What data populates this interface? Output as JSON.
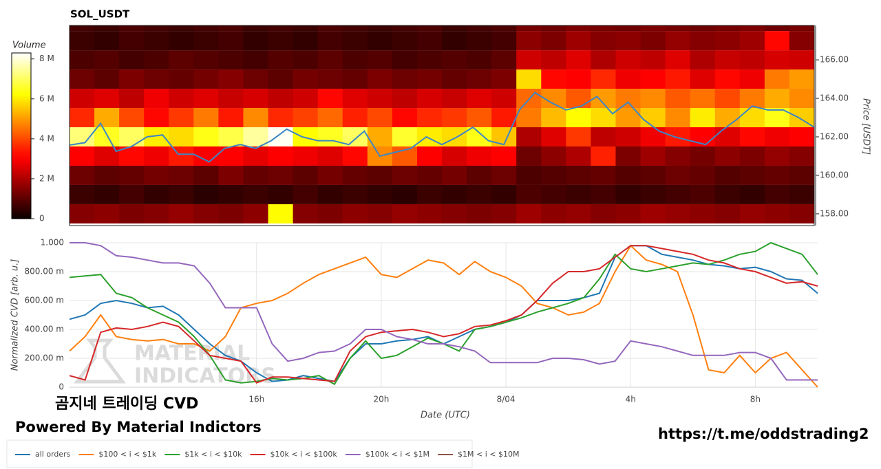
{
  "chart_data": [
    {
      "type": "heatmap",
      "title": "SOL_USDT",
      "ylabel": "Price [USDT]",
      "colorbar_title": "Volume",
      "xlim": [
        10,
        34
      ],
      "ylim": [
        157.39,
        167.79
      ],
      "yticks": [
        {
          "value": 158,
          "label": "158.00"
        },
        {
          "value": 160,
          "label": "160.00"
        },
        {
          "value": 162,
          "label": "162.00"
        },
        {
          "value": 164,
          "label": "164.00"
        },
        {
          "value": 166,
          "label": "166.00"
        }
      ],
      "zlim": [
        0,
        8.3
      ],
      "zticks": [
        0,
        {
          "value": 2,
          "label": "2 M"
        },
        {
          "value": 4,
          "label": "4 M"
        },
        {
          "value": 6,
          "label": "6 M"
        },
        {
          "value": 8,
          "label": "8 M"
        }
      ],
      "colormap": "hot",
      "xbins": [
        10,
        10.8,
        11.6,
        12.4,
        13.2,
        14,
        14.8,
        15.6,
        16.4,
        17.2,
        18,
        18.8,
        19.6,
        20.4,
        21.2,
        22,
        22.8,
        23.6,
        24.4,
        25.2,
        26,
        26.8,
        27.6,
        28.4,
        29.2,
        30,
        30.8,
        31.6,
        32.4,
        33.2,
        34
      ],
      "ybins": [
        157.5,
        158.5,
        159.5,
        160.5,
        161.5,
        162.5,
        163.5,
        164.5,
        165.5,
        166.5,
        167.5,
        168.5
      ],
      "z": [
        [
          1.5,
          1.6,
          1.4,
          1.5,
          1.7,
          1.5,
          1.4,
          1.6,
          6.2,
          1.5,
          1.4,
          1.6,
          1.5,
          1.7,
          1.6,
          1.5,
          1.4,
          1.5,
          1.8,
          1.6,
          1.7,
          1.5,
          1.6,
          1.8,
          1.7,
          1.6,
          1.5,
          1.7,
          1.6,
          1.5
        ],
        [
          0.6,
          0.5,
          0.7,
          0.5,
          0.6,
          0.4,
          0.5,
          0.6,
          0.5,
          0.7,
          0.5,
          0.6,
          0.5,
          0.4,
          0.6,
          0.5,
          0.6,
          0.5,
          0.8,
          0.7,
          0.6,
          0.7,
          0.5,
          0.6,
          0.7,
          0.8,
          0.6,
          0.5,
          0.7,
          0.6
        ],
        [
          1.2,
          1.0,
          1.1,
          1.3,
          1.2,
          1.0,
          1.4,
          1.1,
          1.2,
          1.0,
          1.3,
          1.1,
          1.0,
          1.2,
          1.1,
          1.3,
          1.0,
          1.2,
          0.8,
          0.9,
          1.0,
          1.1,
          0.9,
          1.0,
          1.2,
          1.1,
          0.9,
          1.0,
          1.1,
          1.0
        ],
        [
          3.0,
          2.6,
          3.2,
          2.8,
          3.4,
          2.9,
          3.1,
          2.7,
          3.0,
          2.8,
          2.6,
          3.2,
          4.8,
          4.2,
          3.0,
          2.5,
          2.8,
          3.1,
          1.2,
          1.6,
          2.0,
          3.5,
          1.4,
          1.8,
          1.5,
          1.3,
          1.6,
          1.4,
          1.7,
          1.5
        ],
        [
          7.2,
          6.5,
          7.0,
          6.0,
          5.8,
          6.4,
          6.8,
          7.5,
          8.2,
          6.2,
          6.5,
          7.0,
          5.2,
          6.6,
          6.0,
          5.8,
          6.4,
          5.5,
          2.0,
          2.6,
          3.8,
          2.2,
          2.4,
          2.8,
          3.4,
          3.0,
          2.6,
          3.2,
          2.8,
          3.0
        ],
        [
          3.6,
          5.2,
          4.0,
          3.2,
          3.8,
          4.6,
          3.4,
          4.8,
          3.6,
          3.9,
          4.4,
          3.5,
          4.0,
          3.2,
          3.6,
          3.8,
          4.2,
          3.4,
          4.6,
          5.4,
          6.2,
          5.8,
          5.0,
          5.6,
          4.8,
          6.0,
          5.2,
          5.8,
          6.4,
          5.6
        ],
        [
          2.4,
          2.6,
          2.2,
          2.8,
          2.4,
          2.6,
          2.3,
          2.5,
          2.2,
          2.4,
          3.2,
          2.6,
          2.4,
          2.2,
          2.5,
          2.3,
          2.6,
          2.4,
          4.4,
          4.8,
          4.2,
          5.0,
          4.6,
          4.8,
          4.2,
          4.5,
          4.0,
          4.6,
          5.2,
          4.8
        ],
        [
          1.2,
          1.0,
          1.4,
          1.2,
          1.1,
          1.3,
          1.5,
          1.2,
          1.0,
          1.3,
          1.2,
          1.1,
          1.4,
          1.2,
          1.3,
          1.1,
          1.2,
          1.4,
          5.8,
          3.2,
          3.0,
          3.6,
          2.8,
          3.0,
          3.4,
          2.6,
          3.2,
          2.8,
          4.6,
          5.0
        ],
        [
          0.8,
          0.9,
          0.7,
          0.8,
          1.0,
          0.9,
          0.8,
          0.7,
          0.9,
          0.8,
          1.0,
          0.8,
          0.9,
          0.7,
          0.8,
          0.9,
          0.8,
          1.0,
          2.4,
          2.2,
          2.6,
          2.0,
          2.4,
          2.2,
          2.6,
          2.0,
          2.3,
          2.2,
          2.5,
          2.4
        ],
        [
          0.6,
          0.5,
          0.7,
          0.6,
          0.5,
          0.6,
          0.7,
          0.5,
          0.6,
          0.5,
          0.7,
          0.6,
          0.5,
          0.6,
          0.7,
          0.5,
          0.6,
          0.7,
          1.6,
          1.4,
          1.8,
          1.5,
          1.6,
          1.4,
          1.7,
          1.5,
          1.6,
          1.8,
          3.2,
          1.5
        ],
        [
          0.7,
          0.6,
          0.8,
          0.7,
          0.6,
          0.7,
          0.8,
          0.6,
          0.7,
          0.6,
          0.8,
          0.7,
          0.6,
          0.7,
          0.8,
          0.6,
          0.7,
          0.8,
          1.3,
          1.2,
          1.4,
          1.3,
          1.2,
          1.4,
          1.3,
          1.2,
          1.3,
          1.4,
          1.2,
          1.3
        ]
      ],
      "line_color": "#3b86c6",
      "x": [
        10,
        10.5,
        11,
        11.5,
        12,
        12.5,
        13,
        13.5,
        14,
        14.5,
        15,
        15.5,
        16,
        16.5,
        17,
        17.5,
        18,
        18.5,
        19,
        19.5,
        20,
        20.5,
        21,
        21.5,
        22,
        22.5,
        23,
        23.5,
        24,
        24.5,
        25,
        25.5,
        26,
        26.5,
        27,
        27.5,
        28,
        28.5,
        29,
        29.5,
        30,
        30.5,
        31,
        31.5,
        32,
        32.5,
        33,
        33.5,
        34
      ],
      "values": [
        161.57,
        161.7,
        162.7,
        161.25,
        161.5,
        162.0,
        162.1,
        161.1,
        161.1,
        160.7,
        161.4,
        161.6,
        161.4,
        161.8,
        162.4,
        162.0,
        161.8,
        161.8,
        161.6,
        162.3,
        161.0,
        161.2,
        161.4,
        162.0,
        161.6,
        162.0,
        162.5,
        161.8,
        161.6,
        163.4,
        164.3,
        163.8,
        163.4,
        163.6,
        164.1,
        163.2,
        163.8,
        162.9,
        162.3,
        162.0,
        161.8,
        161.6,
        162.3,
        162.9,
        163.6,
        163.4,
        163.4,
        163.0,
        162.5
      ]
    },
    {
      "type": "line",
      "xlabel": "Date (UTC)",
      "ylabel": "Normalized CVD [arb. u.]",
      "xlim": [
        10,
        34
      ],
      "ylim": [
        0,
        1
      ],
      "xticks": [
        {
          "value": 16,
          "label": "16h"
        },
        {
          "value": 20,
          "label": "20h"
        },
        {
          "value": 24,
          "label": "8/04"
        },
        {
          "value": 28,
          "label": "4h"
        },
        {
          "value": 32,
          "label": "8h"
        }
      ],
      "yticks": [
        0,
        {
          "value": 0.2,
          "label": "200.00 m"
        },
        {
          "value": 0.4,
          "label": "400.00 m"
        },
        {
          "value": 0.6,
          "label": "600.00 m"
        },
        {
          "value": 0.8,
          "label": "800.00 m"
        },
        {
          "value": 1,
          "label": "1.000"
        }
      ],
      "grid": true,
      "legend": "bottom",
      "x": [
        10,
        10.5,
        11,
        11.5,
        12,
        12.5,
        13,
        13.5,
        14,
        14.5,
        15,
        15.5,
        16,
        16.5,
        17,
        17.5,
        18,
        18.5,
        19,
        19.5,
        20,
        20.5,
        21,
        21.5,
        22,
        22.5,
        23,
        23.5,
        24,
        24.5,
        25,
        25.5,
        26,
        26.5,
        27,
        27.5,
        28,
        28.5,
        29,
        29.5,
        30,
        30.5,
        31,
        31.5,
        32,
        32.5,
        33,
        33.5,
        34
      ],
      "series": [
        {
          "name": "all orders",
          "color": "#1f77b4",
          "values": [
            0.47,
            0.5,
            0.58,
            0.6,
            0.58,
            0.55,
            0.56,
            0.5,
            0.4,
            0.3,
            0.22,
            0.18,
            0.1,
            0.04,
            0.05,
            0.08,
            0.06,
            0.04,
            0.2,
            0.3,
            0.3,
            0.32,
            0.33,
            0.35,
            0.3,
            0.35,
            0.4,
            0.42,
            0.45,
            0.5,
            0.6,
            0.6,
            0.6,
            0.62,
            0.65,
            0.9,
            0.98,
            0.98,
            0.92,
            0.9,
            0.88,
            0.85,
            0.84,
            0.82,
            0.83,
            0.8,
            0.75,
            0.74,
            0.65
          ]
        },
        {
          "name": "$100 < i < $1k",
          "color": "#ff7f0e",
          "values": [
            0.25,
            0.35,
            0.5,
            0.35,
            0.33,
            0.32,
            0.33,
            0.3,
            0.3,
            0.25,
            0.35,
            0.55,
            0.58,
            0.6,
            0.65,
            0.72,
            0.78,
            0.82,
            0.86,
            0.9,
            0.78,
            0.76,
            0.82,
            0.88,
            0.86,
            0.78,
            0.87,
            0.8,
            0.76,
            0.7,
            0.58,
            0.55,
            0.5,
            0.52,
            0.58,
            0.8,
            0.98,
            0.88,
            0.85,
            0.8,
            0.5,
            0.12,
            0.1,
            0.22,
            0.1,
            0.2,
            0.24,
            0.12,
            0.0
          ]
        },
        {
          "name": "$1k < i < $10k",
          "color": "#2ca02c",
          "values": [
            0.76,
            0.77,
            0.78,
            0.65,
            0.62,
            0.55,
            0.5,
            0.45,
            0.35,
            0.22,
            0.05,
            0.03,
            0.04,
            0.06,
            0.05,
            0.06,
            0.08,
            0.02,
            0.2,
            0.32,
            0.2,
            0.22,
            0.28,
            0.34,
            0.3,
            0.25,
            0.4,
            0.42,
            0.45,
            0.48,
            0.52,
            0.55,
            0.58,
            0.62,
            0.75,
            0.92,
            0.82,
            0.8,
            0.82,
            0.84,
            0.86,
            0.85,
            0.88,
            0.92,
            0.94,
            1.0,
            0.96,
            0.92,
            0.78
          ]
        },
        {
          "name": "$10k < i < $100k",
          "color": "#d62728",
          "values": [
            0.08,
            0.05,
            0.38,
            0.41,
            0.4,
            0.42,
            0.45,
            0.42,
            0.32,
            0.22,
            0.2,
            0.18,
            0.03,
            0.07,
            0.07,
            0.06,
            0.05,
            0.04,
            0.25,
            0.35,
            0.38,
            0.39,
            0.4,
            0.38,
            0.35,
            0.37,
            0.42,
            0.43,
            0.46,
            0.5,
            0.6,
            0.72,
            0.8,
            0.8,
            0.82,
            0.9,
            0.98,
            0.98,
            0.96,
            0.94,
            0.92,
            0.88,
            0.86,
            0.82,
            0.8,
            0.76,
            0.72,
            0.73,
            0.7
          ]
        },
        {
          "name": "$100k < i < $1M",
          "color": "#9467bd",
          "values": [
            1.0,
            1.0,
            0.98,
            0.91,
            0.9,
            0.88,
            0.86,
            0.86,
            0.84,
            0.72,
            0.55,
            0.55,
            0.55,
            0.3,
            0.18,
            0.2,
            0.24,
            0.25,
            0.3,
            0.4,
            0.4,
            0.35,
            0.33,
            0.3,
            0.3,
            0.28,
            0.25,
            0.17,
            0.17,
            0.17,
            0.17,
            0.2,
            0.2,
            0.19,
            0.16,
            0.18,
            0.32,
            0.3,
            0.28,
            0.25,
            0.22,
            0.22,
            0.22,
            0.24,
            0.24,
            0.2,
            0.05,
            0.05,
            0.05
          ]
        },
        {
          "name": "$1M < i < $10M",
          "color": "#8c564b",
          "values": [
            null,
            null,
            null,
            null,
            null,
            null,
            null,
            null,
            null,
            null,
            null,
            null,
            null,
            null,
            null,
            null,
            null,
            null,
            null,
            null,
            null,
            null,
            null,
            null,
            null,
            null,
            null,
            null,
            null,
            null,
            null,
            null,
            null,
            null,
            null,
            null,
            null,
            null,
            null,
            null,
            null,
            null,
            null,
            null,
            null,
            null,
            null,
            null,
            null
          ]
        }
      ]
    }
  ],
  "overlay": {
    "caption": "곰지네 트레이딩 CVD",
    "powered_by": "Powered By Material Indictors",
    "link": "https://t.me/oddstrading2",
    "watermark": [
      "MATERIAL",
      "INDICATORS"
    ]
  }
}
